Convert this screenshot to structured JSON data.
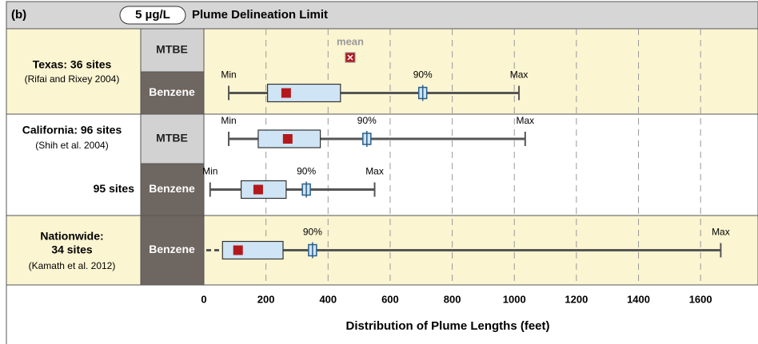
{
  "chart_data": {
    "type": "box",
    "panel": "(b)",
    "limit": "5 µg/L",
    "title": "Plume Delineation Limit",
    "xlabel": "Distribution of Plume Lengths (feet)",
    "xlim": [
      0,
      1785
    ],
    "xticks": [
      0,
      200,
      400,
      600,
      800,
      1000,
      1200,
      1400,
      1600
    ],
    "grid": true,
    "legend": {
      "mean": "mean"
    },
    "box_color": "#cfe4f4",
    "mean_color": "#b3191c",
    "groups": [
      {
        "title": [
          "Texas: 36 sites"
        ],
        "subtitle": "(Rifai and Rixey 2004)",
        "rows": [
          {
            "label": "MTBE"
          },
          {
            "label": "Benzene",
            "min": 80,
            "q1": 205,
            "mean": 265,
            "q3": 440,
            "p90": 705,
            "max": 1015,
            "labels": {
              "min": "Min",
              "p90": "90%",
              "max": "Max"
            }
          }
        ]
      },
      {
        "title": [
          "California: 96 sites"
        ],
        "subtitle": "(Shih et al. 2004)",
        "rows": [
          {
            "label": "MTBE",
            "min": 80,
            "q1": 175,
            "mean": 270,
            "q3": 375,
            "p90": 525,
            "max": 1035,
            "labels": {
              "min": "Min",
              "p90": "90%",
              "max": "Max"
            }
          },
          {
            "label": "Benzene",
            "note": "95 sites",
            "min": 20,
            "q1": 120,
            "mean": 175,
            "q3": 265,
            "p90": 330,
            "max": 550,
            "labels": {
              "min": "Min",
              "p90": "90%",
              "max": "Max"
            }
          }
        ]
      },
      {
        "title": [
          "Nationwide:",
          "34 sites"
        ],
        "subtitle": "(Kamath et al. 2012)",
        "rows": [
          {
            "label": "Benzene",
            "min": null,
            "q1": 60,
            "mean": 110,
            "q3": 255,
            "p90": 350,
            "max": 1665,
            "labels": {
              "p90": "90%",
              "max": "Max"
            }
          }
        ]
      }
    ]
  }
}
